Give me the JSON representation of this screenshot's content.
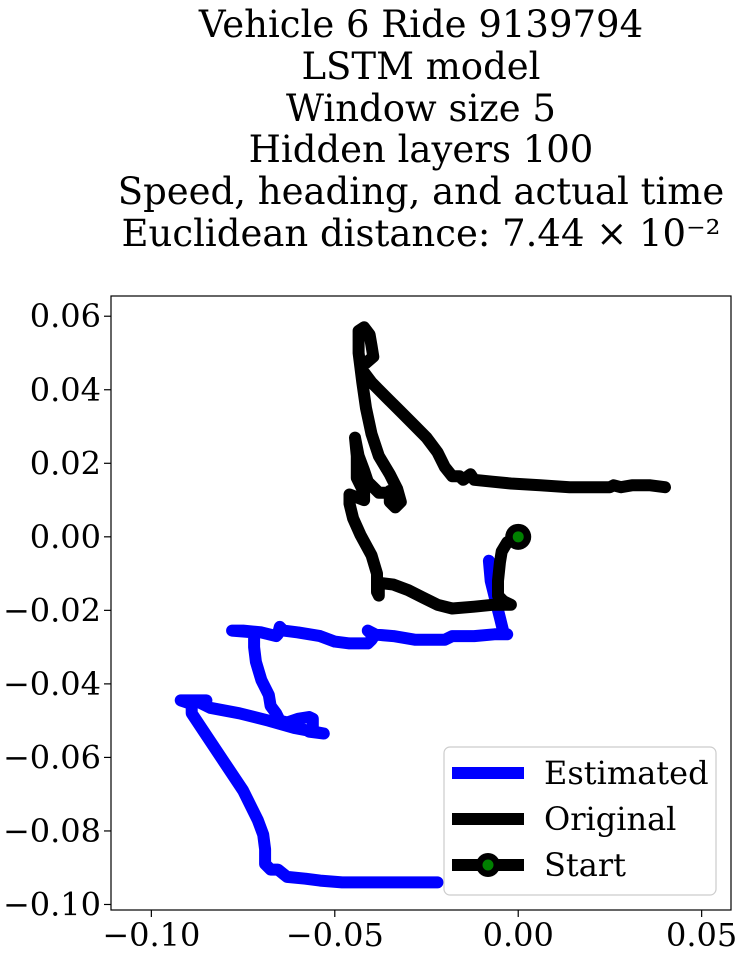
{
  "chart_data": {
    "type": "line",
    "title_lines": [
      "Vehicle 6 Ride 9139794",
      "LSTM model",
      "Window size 5",
      "Hidden layers 100",
      "Speed, heading, and actual time",
      "Euclidean distance: 7.44 × 10⁻²"
    ],
    "xlabel": "",
    "ylabel": "",
    "xlim": [
      -0.111,
      0.058
    ],
    "ylim": [
      -0.1015,
      0.0655
    ],
    "xticks": [
      -0.1,
      -0.05,
      0.0,
      0.05
    ],
    "xtick_labels": [
      "−0.10",
      "−0.05",
      "0.00",
      "0.05"
    ],
    "yticks": [
      0.06,
      0.04,
      0.02,
      0.0,
      -0.02,
      -0.04,
      -0.06,
      -0.08,
      -0.1
    ],
    "ytick_labels": [
      "0.06",
      "0.04",
      "0.02",
      "0.00",
      "−0.02",
      "−0.04",
      "−0.06",
      "−0.08",
      "−0.10"
    ],
    "grid": false,
    "legend_position": "lower-right",
    "series": [
      {
        "name": "Estimated",
        "color": "#0000ff",
        "points": [
          [
            -0.008,
            -0.0065
          ],
          [
            -0.0075,
            -0.012
          ],
          [
            -0.006,
            -0.018
          ],
          [
            -0.005,
            -0.022
          ],
          [
            -0.004,
            -0.026
          ],
          [
            -0.003,
            -0.0265
          ],
          [
            -0.0065,
            -0.0265
          ],
          [
            -0.012,
            -0.027
          ],
          [
            -0.018,
            -0.027
          ],
          [
            -0.02,
            -0.028
          ],
          [
            -0.022,
            -0.028
          ],
          [
            -0.028,
            -0.028
          ],
          [
            -0.034,
            -0.027
          ],
          [
            -0.04,
            -0.0265
          ],
          [
            -0.041,
            -0.0255
          ],
          [
            -0.039,
            -0.0265
          ],
          [
            -0.04,
            -0.028
          ],
          [
            -0.041,
            -0.029
          ],
          [
            -0.046,
            -0.029
          ],
          [
            -0.05,
            -0.0285
          ],
          [
            -0.054,
            -0.027
          ],
          [
            -0.06,
            -0.026
          ],
          [
            -0.064,
            -0.0255
          ],
          [
            -0.065,
            -0.0245
          ],
          [
            -0.0655,
            -0.0265
          ],
          [
            -0.066,
            -0.027
          ],
          [
            -0.07,
            -0.026
          ],
          [
            -0.075,
            -0.0255
          ],
          [
            -0.078,
            -0.0255
          ],
          [
            -0.072,
            -0.026
          ],
          [
            -0.072,
            -0.03
          ],
          [
            -0.0715,
            -0.034
          ],
          [
            -0.07,
            -0.039
          ],
          [
            -0.068,
            -0.043
          ],
          [
            -0.0675,
            -0.046
          ],
          [
            -0.066,
            -0.048
          ],
          [
            -0.065,
            -0.05
          ],
          [
            -0.063,
            -0.0505
          ],
          [
            -0.06,
            -0.0495
          ],
          [
            -0.057,
            -0.049
          ],
          [
            -0.056,
            -0.0495
          ],
          [
            -0.056,
            -0.0515
          ],
          [
            -0.057,
            -0.053
          ],
          [
            -0.053,
            -0.0535
          ],
          [
            -0.061,
            -0.052
          ],
          [
            -0.068,
            -0.05
          ],
          [
            -0.076,
            -0.048
          ],
          [
            -0.084,
            -0.0465
          ],
          [
            -0.087,
            -0.045
          ],
          [
            -0.085,
            -0.0445
          ],
          [
            -0.092,
            -0.0445
          ],
          [
            -0.089,
            -0.0455
          ],
          [
            -0.089,
            -0.048
          ],
          [
            -0.085,
            -0.054
          ],
          [
            -0.08,
            -0.0615
          ],
          [
            -0.075,
            -0.069
          ],
          [
            -0.071,
            -0.077
          ],
          [
            -0.0695,
            -0.081
          ],
          [
            -0.069,
            -0.085
          ],
          [
            -0.069,
            -0.089
          ],
          [
            -0.0675,
            -0.0905
          ],
          [
            -0.0655,
            -0.0905
          ],
          [
            -0.063,
            -0.0925
          ],
          [
            -0.058,
            -0.093
          ],
          [
            -0.054,
            -0.0935
          ],
          [
            -0.048,
            -0.094
          ],
          [
            -0.04,
            -0.094
          ],
          [
            -0.03,
            -0.094
          ],
          [
            -0.022,
            -0.094
          ]
        ]
      },
      {
        "name": "Original",
        "color": "#000000",
        "points": [
          [
            0.04,
            0.0135
          ],
          [
            0.036,
            0.014
          ],
          [
            0.031,
            0.014
          ],
          [
            0.028,
            0.0135
          ],
          [
            0.026,
            0.014
          ],
          [
            0.025,
            0.0135
          ],
          [
            0.02,
            0.0135
          ],
          [
            0.014,
            0.0135
          ],
          [
            0.006,
            0.014
          ],
          [
            -0.002,
            0.0145
          ],
          [
            -0.007,
            0.015
          ],
          [
            -0.012,
            0.0155
          ],
          [
            -0.013,
            0.017
          ],
          [
            -0.015,
            0.0155
          ],
          [
            -0.016,
            0.0165
          ],
          [
            -0.018,
            0.0165
          ],
          [
            -0.02,
            0.019
          ],
          [
            -0.022,
            0.023
          ],
          [
            -0.025,
            0.027
          ],
          [
            -0.028,
            0.03
          ],
          [
            -0.032,
            0.034
          ],
          [
            -0.036,
            0.038
          ],
          [
            -0.04,
            0.042
          ],
          [
            -0.043,
            0.046
          ],
          [
            -0.0395,
            0.049
          ],
          [
            -0.04,
            0.052
          ],
          [
            -0.0405,
            0.055
          ],
          [
            -0.042,
            0.057
          ],
          [
            -0.0435,
            0.056
          ],
          [
            -0.0435,
            0.05
          ],
          [
            -0.0425,
            0.042
          ],
          [
            -0.0415,
            0.035
          ],
          [
            -0.04,
            0.028
          ],
          [
            -0.038,
            0.022
          ],
          [
            -0.035,
            0.017
          ],
          [
            -0.033,
            0.013
          ],
          [
            -0.032,
            0.0095
          ],
          [
            -0.0335,
            0.008
          ],
          [
            -0.035,
            0.0095
          ],
          [
            -0.035,
            0.0125
          ],
          [
            -0.0335,
            0.012
          ],
          [
            -0.038,
            0.012
          ],
          [
            -0.041,
            0.015
          ],
          [
            -0.042,
            0.018
          ],
          [
            -0.0435,
            0.022
          ],
          [
            -0.0445,
            0.027
          ],
          [
            -0.044,
            0.022
          ],
          [
            -0.044,
            0.016
          ],
          [
            -0.042,
            0.012
          ],
          [
            -0.042,
            0.01
          ],
          [
            -0.046,
            0.0115
          ],
          [
            -0.046,
            0.009
          ],
          [
            -0.045,
            0.005
          ],
          [
            -0.043,
            0.0005
          ],
          [
            -0.04,
            -0.005
          ],
          [
            -0.0385,
            -0.01
          ],
          [
            -0.0385,
            -0.015
          ],
          [
            -0.038,
            -0.016
          ],
          [
            -0.038,
            -0.0125
          ],
          [
            -0.034,
            -0.013
          ],
          [
            -0.03,
            -0.0145
          ],
          [
            -0.026,
            -0.0165
          ],
          [
            -0.022,
            -0.0185
          ],
          [
            -0.018,
            -0.0195
          ],
          [
            -0.012,
            -0.019
          ],
          [
            -0.007,
            -0.0185
          ],
          [
            -0.002,
            -0.0185
          ],
          [
            -0.004,
            -0.0175
          ],
          [
            -0.0055,
            -0.016
          ],
          [
            -0.0055,
            -0.012
          ],
          [
            -0.005,
            -0.007
          ],
          [
            -0.0045,
            -0.004
          ],
          [
            -0.003,
            -0.0015
          ],
          [
            0.0,
            0.0
          ]
        ]
      },
      {
        "name": "Start",
        "color": "#008000",
        "marker_edge": "#000000",
        "points": [
          [
            0.0,
            0.0
          ]
        ]
      }
    ]
  }
}
